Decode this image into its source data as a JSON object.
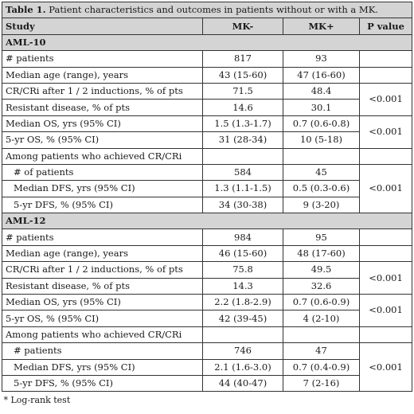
{
  "caption": {
    "label": "Table 1.",
    "text": " Patient characteristics and outcomes in patients without or with a MK."
  },
  "header": [
    "Study",
    "MK-",
    "MK+",
    "P value"
  ],
  "sections": [
    {
      "name": "AML-10",
      "rows": [
        {
          "label": "# patients",
          "mkneg": "817",
          "mkpos": "93",
          "indent": false
        },
        {
          "label": "Median age (range), years",
          "mkneg": "43 (15-60)",
          "mkpos": "47 (16-60)",
          "indent": false
        },
        {
          "label": "CR/CRi after 1 / 2 inductions, % of pts",
          "mkneg": "71.5",
          "mkpos": "48.4",
          "indent": false
        },
        {
          "label": "Resistant disease, % of pts",
          "mkneg": "14.6",
          "mkpos": "30.1",
          "indent": false
        },
        {
          "label": "Median OS, yrs (95% CI)",
          "mkneg": "1.5 (1.3-1.7)",
          "mkpos": "0.7 (0.6-0.8)",
          "indent": false
        },
        {
          "label": "5-yr OS, % (95% CI)",
          "mkneg": "31 (28-34)",
          "mkpos": "10 (5-18)",
          "indent": false
        },
        {
          "label": "Among patients who achieved CR/CRi",
          "mkneg": "",
          "mkpos": "",
          "indent": false
        },
        {
          "label": "# of patients",
          "mkneg": "584",
          "mkpos": "45",
          "indent": true
        },
        {
          "label": "Median DFS, yrs (95% CI)",
          "mkneg": "1.3 (1.1-1.5)",
          "mkpos": "0.5 (0.3-0.6)",
          "indent": true
        },
        {
          "label": "5-yr DFS, % (95% CI)",
          "mkneg": "34 (30-38)",
          "mkpos": "9 (3-20)",
          "indent": true
        }
      ],
      "pvalues": [
        "<0.001",
        "<0.001",
        "<0.001"
      ]
    },
    {
      "name": "AML-12",
      "rows": [
        {
          "label": "# patients",
          "mkneg": "984",
          "mkpos": "95",
          "indent": false
        },
        {
          "label": "Median age (range), years",
          "mkneg": "46 (15-60)",
          "mkpos": "48 (17-60)",
          "indent": false
        },
        {
          "label": "CR/CRi after 1 / 2 inductions, % of pts",
          "mkneg": "75.8",
          "mkpos": "49.5",
          "indent": false
        },
        {
          "label": "Resistant disease, % of pts",
          "mkneg": "14.3",
          "mkpos": "32.6",
          "indent": false
        },
        {
          "label": "Median OS, yrs (95% CI)",
          "mkneg": "2.2 (1.8-2.9)",
          "mkpos": "0.7 (0.6-0.9)",
          "indent": false
        },
        {
          "label": "5-yr OS, % (95% CI)",
          "mkneg": "42 (39-45)",
          "mkpos": "4 (2-10)",
          "indent": false
        },
        {
          "label": "Among patients who achieved CR/CRi",
          "mkneg": "",
          "mkpos": "",
          "indent": false
        },
        {
          "label": "# patients",
          "mkneg": "746",
          "mkpos": "47",
          "indent": true
        },
        {
          "label": "Median DFS, yrs (95% CI)",
          "mkneg": "2.1 (1.6-3.0)",
          "mkpos": "0.7 (0.4-0.9)",
          "indent": true
        },
        {
          "label": "5-yr DFS, % (95% CI)",
          "mkneg": "44 (40-47)",
          "mkpos": "7 (2-16)",
          "indent": true
        }
      ],
      "pvalues": [
        "<0.001",
        "<0.001",
        "<0.001"
      ]
    }
  ],
  "footnote": "* Log-rank test",
  "colors": {
    "header_bg": "#d4d4d4",
    "border": "#333333"
  }
}
